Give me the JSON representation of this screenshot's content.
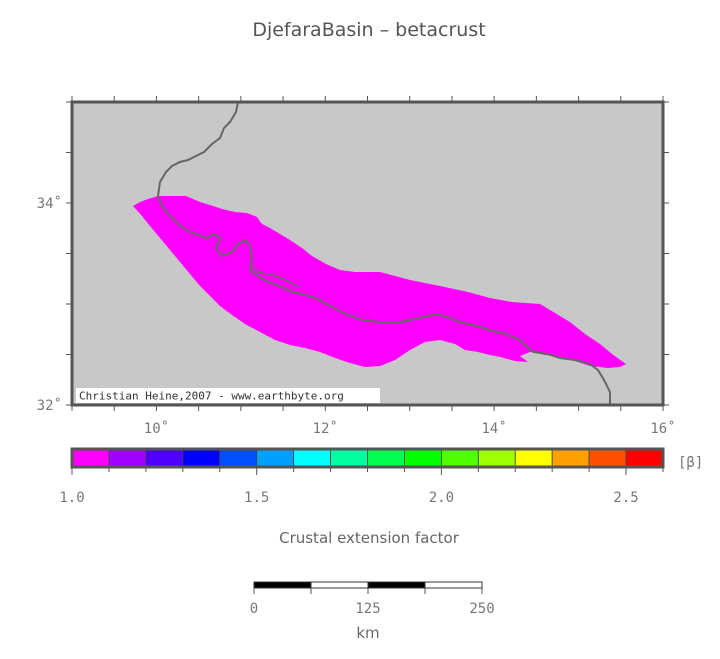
{
  "title": "DjefaraBasin – betacrust",
  "map": {
    "x_ticks": [
      {
        "lon": 10,
        "label": "10˚"
      },
      {
        "lon": 12,
        "label": "12˚"
      },
      {
        "lon": 14,
        "label": "14˚"
      },
      {
        "lon": 16,
        "label": "16˚"
      }
    ],
    "y_ticks": [
      {
        "lat": 34,
        "label": "34˚"
      },
      {
        "lat": 32,
        "label": "32˚"
      }
    ],
    "lon_range": [
      9,
      16
    ],
    "lat_range": [
      32,
      35
    ],
    "credit": "Christian Heine,2007 - www.earthbyte.org",
    "basin_color": "#ff00ff",
    "ocean_color": "#c8c8c8",
    "coast_color": "#666666"
  },
  "colorbar": {
    "unit_label": "[β]",
    "colors": [
      "#ff00ff",
      "#a000ff",
      "#5000ff",
      "#0000ff",
      "#0050ff",
      "#00a0ff",
      "#00ffff",
      "#00ffa0",
      "#00ff50",
      "#00ff00",
      "#50ff00",
      "#a0ff00",
      "#ffff00",
      "#ffa000",
      "#ff5000",
      "#ff0000"
    ],
    "tick_labels": [
      {
        "value": 1.0,
        "label": "1.0"
      },
      {
        "value": 1.5,
        "label": "1.5"
      },
      {
        "value": 2.0,
        "label": "2.0"
      },
      {
        "value": 2.5,
        "label": "2.5"
      }
    ],
    "range": [
      1.0,
      2.6
    ],
    "title": "Crustal extension factor"
  },
  "scalebar": {
    "labels": [
      {
        "value": 0,
        "label": "0"
      },
      {
        "value": 125,
        "label": "125"
      },
      {
        "value": 250,
        "label": "250"
      }
    ],
    "max_km": 250,
    "segments": 4,
    "unit": "km"
  }
}
